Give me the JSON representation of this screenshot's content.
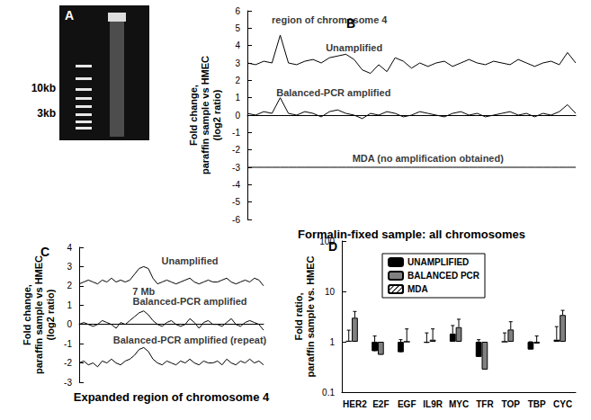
{
  "chart_data": [
    {
      "type": "gel",
      "label": "A",
      "markers": [
        {
          "label": "10kb"
        },
        {
          "label": "3kb"
        }
      ]
    },
    {
      "type": "line",
      "label": "B",
      "x_label": "Formalin-fixed sample: all chromosomes",
      "y_label": "Fold change,\nparaffin sample vs HMEC\n(log2 ratio)",
      "x": [
        0,
        1,
        2,
        3,
        4,
        5,
        6,
        7,
        8,
        9,
        10,
        11,
        12,
        13,
        14,
        15,
        16,
        17,
        18,
        19,
        20,
        21,
        22,
        23,
        24,
        25,
        26,
        27,
        28,
        29,
        30,
        31,
        32,
        33,
        34,
        35,
        36,
        37,
        38,
        39,
        40
      ],
      "xlim": [
        0,
        40
      ],
      "ylim": [
        -6,
        6
      ],
      "yticks": [
        -6,
        -5,
        -4,
        -3,
        -2,
        -1,
        0,
        1,
        2,
        3,
        4,
        5,
        6
      ],
      "tick_labels": "y",
      "series": [
        {
          "color": "#000000",
          "values": [
            3.0,
            2.9,
            3.1,
            3.0,
            4.6,
            3.0,
            2.9,
            3.1,
            3.2,
            3.0,
            3.3,
            3.4,
            3.5,
            3.2,
            2.6,
            2.4,
            2.9,
            2.5,
            3.3,
            3.1,
            2.7,
            3.0,
            2.8,
            3.0,
            3.1,
            2.8,
            3.0,
            3.2,
            3.0,
            2.9,
            3.1,
            3.0,
            2.9,
            3.2,
            3.0,
            2.8,
            3.0,
            3.1,
            2.9,
            3.6,
            3.0
          ]
        },
        {
          "color": "#000000",
          "values": [
            0.1,
            0.0,
            0.2,
            0.1,
            1.0,
            0.1,
            0.0,
            0.2,
            0.1,
            -0.1,
            0.2,
            0.3,
            0.1,
            0.0,
            -0.2,
            0.1,
            0.0,
            0.2,
            0.1,
            -0.1,
            0.0,
            0.2,
            0.1,
            0.0,
            -0.1,
            0.1,
            0.2,
            0.0,
            0.1,
            -0.1,
            0.0,
            0.1,
            0.2,
            0.0,
            0.1,
            -0.1,
            0.1,
            0.0,
            0.2,
            0.6,
            0.1
          ]
        },
        {
          "color": "#000000",
          "values": [
            -3,
            -3,
            -3,
            -3,
            -3,
            -3,
            -3,
            -3,
            -3,
            -3,
            -3,
            -3,
            -3,
            -3,
            -3,
            -3,
            -3,
            -3,
            -3,
            -3,
            -3,
            -3,
            -3,
            -3,
            -3,
            -3,
            -3,
            -3,
            -3,
            -3,
            -3,
            -3,
            -3,
            -3,
            -3,
            -3,
            -3,
            -3,
            -3,
            -3,
            -3
          ]
        }
      ],
      "annotations": [
        {
          "text": "region of chromosome 4",
          "x": 10,
          "y": 5.5
        },
        {
          "text": "Unamplified",
          "x": 13,
          "y": 3.9
        },
        {
          "text": "Balanced-PCR amplified",
          "x": 10.5,
          "y": 1.3
        },
        {
          "text": "MDA (no amplification obtained)",
          "x": 22,
          "y": -2.5
        }
      ]
    },
    {
      "type": "line",
      "label": "C",
      "x_label": "Expanded region of chromosome 4",
      "y_label": "Fold change,\nparaffin sample vs HMEC\n(log2 ratio)",
      "x": [
        0,
        1,
        2,
        3,
        4,
        5,
        6,
        7,
        8,
        9,
        10,
        11,
        12,
        13,
        14,
        15,
        16,
        17,
        18,
        19,
        20,
        21,
        22,
        23,
        24,
        25,
        26,
        27,
        28,
        29,
        30,
        31,
        32,
        33,
        34,
        35,
        36,
        37,
        38,
        39,
        40
      ],
      "xlim": [
        0,
        40
      ],
      "ylim": [
        -3,
        4
      ],
      "yticks": [
        -3,
        -2,
        -1,
        0,
        1,
        2,
        3,
        4
      ],
      "tick_labels": "y",
      "series": [
        {
          "color": "#000000",
          "values": [
            2.1,
            2.2,
            2.3,
            2.2,
            2.1,
            2.3,
            2.2,
            2.4,
            2.2,
            2.3,
            2.2,
            2.3,
            2.6,
            2.9,
            3.0,
            2.9,
            2.4,
            2.1,
            2.2,
            2.3,
            2.2,
            2.1,
            2.2,
            2.3,
            2.4,
            2.2,
            2.1,
            2.2,
            2.3,
            2.2,
            2.2,
            2.3,
            2.4,
            2.2,
            2.1,
            2.2,
            2.3,
            2.2,
            2.4,
            2.3,
            2.0
          ]
        },
        {
          "color": "#000000",
          "values": [
            0.0,
            0.1,
            0.0,
            -0.1,
            0.0,
            0.2,
            0.1,
            0.0,
            -0.2,
            0.1,
            0.0,
            0.2,
            0.4,
            0.6,
            0.7,
            0.5,
            0.2,
            0.0,
            -0.1,
            0.1,
            0.2,
            0.0,
            -0.1,
            0.0,
            0.3,
            0.1,
            -0.2,
            0.1,
            0.2,
            0.0,
            0.0,
            -0.1,
            0.1,
            0.3,
            0.0,
            -0.1,
            0.1,
            0.2,
            0.1,
            0.0,
            -0.3
          ]
        },
        {
          "color": "#000000",
          "values": [
            -2.0,
            -1.9,
            -2.1,
            -2.0,
            -2.2,
            -1.9,
            -2.0,
            -1.8,
            -2.0,
            -2.1,
            -1.9,
            -1.8,
            -1.6,
            -1.3,
            -1.2,
            -1.4,
            -1.8,
            -2.0,
            -2.1,
            -1.9,
            -2.0,
            -2.1,
            -1.9,
            -2.0,
            -1.8,
            -2.0,
            -2.1,
            -1.9,
            -2.0,
            -2.0,
            -1.9,
            -2.1,
            -1.8,
            -2.0,
            -2.1,
            -1.9,
            -2.0,
            -1.8,
            -2.0,
            -1.9,
            -2.1
          ]
        }
      ],
      "annotations": [
        {
          "text": "Unamplified",
          "x": 24,
          "y": 3.3
        },
        {
          "text": "7 Mb",
          "x": 14,
          "y": 1.7
        },
        {
          "text": "Balanced-PCR amplified",
          "x": 24,
          "y": 1.2
        },
        {
          "text": "Balanced-PCR amplified (repeat)",
          "x": 24,
          "y": -0.8
        }
      ]
    },
    {
      "type": "bar",
      "label": "D",
      "y_label": "Fold ratio,\nparaffin sample vs. HMEC",
      "categories": [
        "HER2",
        "E2F",
        "EGF",
        "IL9R",
        "MYC",
        "TFR",
        "TOP",
        "TBP",
        "CYC"
      ],
      "log": "y",
      "ylim": [
        0.1,
        100
      ],
      "yticks": [
        0.1,
        1,
        10,
        100
      ],
      "legend": "upper left",
      "series": [
        {
          "name": "UNAMPLIFIED",
          "color": "#000000",
          "values": [
            1.05,
            0.65,
            0.62,
            0.95,
            1.45,
            0.5,
            1.0,
            0.7,
            1.1
          ],
          "errors": [
            0.65,
            0.65,
            0.48,
            0.55,
            0.65,
            0.6,
            0.5,
            0.3,
            0.9
          ]
        },
        {
          "name": "BALANCED PCR",
          "color": "#808080",
          "values": [
            3.0,
            0.55,
            1.0,
            1.1,
            1.95,
            0.28,
            1.75,
            0.92,
            3.4
          ],
          "errors": [
            1.0,
            0.15,
            0.8,
            0.7,
            0.85,
            0.1,
            0.75,
            0.38,
            0.8
          ]
        },
        {
          "name": "MDA",
          "color": "#ffffff",
          "values": [
            null,
            null,
            null,
            null,
            null,
            null,
            null,
            null,
            null
          ],
          "errors": [
            null,
            null,
            null,
            null,
            null,
            null,
            null,
            null,
            null
          ]
        }
      ]
    }
  ]
}
